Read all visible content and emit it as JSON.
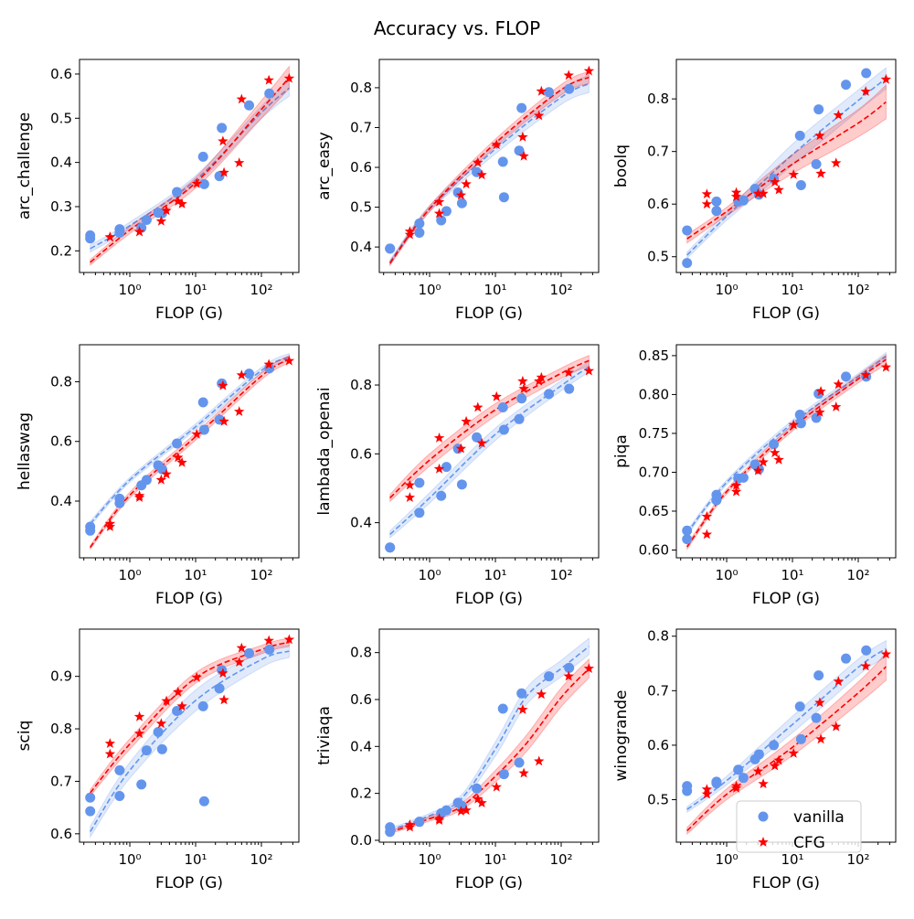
{
  "title": "Accuracy vs. FLOP",
  "legend": {
    "placement": "lower-right",
    "entries": [
      {
        "label": "vanilla",
        "color": "#6495ED",
        "marker": "circle"
      },
      {
        "label": "CFG",
        "color": "#FF0000",
        "marker": "star"
      }
    ]
  },
  "colors": {
    "vanilla": "#6495ED",
    "CFG": "#FF0000"
  },
  "shared": {
    "xlabel": "FLOP (G)",
    "xscale": "log",
    "xlim": [
      0.172,
      371
    ],
    "xticks": [
      1,
      10,
      100
    ],
    "xtick_labels": [
      "10⁰",
      "10¹",
      "10²"
    ],
    "vanilla_x": [
      0.25,
      0.25,
      0.7,
      0.7,
      1.5,
      1.8,
      2.7,
      3.1,
      5.2,
      13,
      13.5,
      23,
      25,
      65,
      132
    ],
    "cfg_x": [
      0.5,
      0.5,
      1.4,
      1.4,
      3,
      3.6,
      5.4,
      6.2,
      10.4,
      26,
      27,
      46,
      50,
      130,
      264
    ]
  },
  "chart_data": [
    {
      "type": "scatter",
      "ylabel": "arc_challenge",
      "ylim": [
        0.151,
        0.633
      ],
      "yticks": [
        0.2,
        0.3,
        0.4,
        0.5,
        0.6
      ],
      "ytick_labels": [
        "0.2",
        "0.3",
        "0.4",
        "0.5",
        "0.6"
      ],
      "series": [
        {
          "name": "vanilla",
          "y": [
            0.235,
            0.228,
            0.249,
            0.241,
            0.252,
            0.27,
            0.286,
            0.285,
            0.333,
            0.413,
            0.351,
            0.369,
            0.478,
            0.529,
            0.556
          ],
          "fit": {
            "x": [
              0.25,
              1,
              10,
              100,
              264
            ],
            "y": [
              0.205,
              0.257,
              0.36,
              0.513,
              0.568
            ],
            "band": [
              0.008,
              0.008,
              0.01,
              0.014,
              0.018
            ]
          }
        },
        {
          "name": "CFG",
          "y": [
            0.231,
            0.231,
            0.243,
            0.243,
            0.267,
            0.291,
            0.312,
            0.306,
            0.352,
            0.448,
            0.377,
            0.399,
            0.543,
            0.586,
            0.59
          ],
          "fit": {
            "x": [
              0.25,
              1,
              10,
              100,
              264
            ],
            "y": [
              0.174,
              0.247,
              0.354,
              0.52,
              0.592
            ],
            "band": [
              0.006,
              0.008,
              0.012,
              0.02,
              0.025
            ]
          }
        }
      ]
    },
    {
      "type": "scatter",
      "ylabel": "arc_easy",
      "ylim": [
        0.336,
        0.871
      ],
      "yticks": [
        0.4,
        0.5,
        0.6,
        0.7,
        0.8
      ],
      "ytick_labels": [
        "0.4",
        "0.5",
        "0.6",
        "0.7",
        "0.8"
      ],
      "series": [
        {
          "name": "vanilla",
          "y": [
            0.396,
            0.396,
            0.459,
            0.436,
            0.467,
            0.49,
            0.537,
            0.51,
            0.588,
            0.614,
            0.525,
            0.642,
            0.749,
            0.789,
            0.797
          ],
          "fit": {
            "x": [
              0.25,
              1,
              10,
              100,
              264
            ],
            "y": [
              0.362,
              0.496,
              0.646,
              0.776,
              0.81
            ],
            "band": [
              0.006,
              0.008,
              0.012,
              0.018,
              0.022
            ]
          }
        },
        {
          "name": "CFG",
          "y": [
            0.439,
            0.431,
            0.513,
            0.484,
            0.53,
            0.558,
            0.612,
            0.581,
            0.657,
            0.676,
            0.628,
            0.73,
            0.791,
            0.831,
            0.842
          ],
          "fit": {
            "x": [
              0.25,
              1,
              10,
              100,
              264
            ],
            "y": [
              0.359,
              0.496,
              0.661,
              0.795,
              0.826
            ],
            "band": [
              0.005,
              0.007,
              0.01,
              0.013,
              0.015
            ]
          }
        }
      ]
    },
    {
      "type": "scatter",
      "ylabel": "boolq",
      "ylim": [
        0.47,
        0.875
      ],
      "yticks": [
        0.5,
        0.6,
        0.7,
        0.8
      ],
      "ytick_labels": [
        "0.5",
        "0.6",
        "0.7",
        "0.8"
      ],
      "series": [
        {
          "name": "vanilla",
          "y": [
            0.55,
            0.488,
            0.605,
            0.587,
            0.605,
            0.607,
            0.629,
            0.618,
            0.648,
            0.73,
            0.636,
            0.676,
            0.78,
            0.827,
            0.849
          ],
          "fit": {
            "x": [
              0.25,
              1,
              10,
              100,
              264
            ],
            "y": [
              0.503,
              0.577,
              0.694,
              0.797,
              0.839
            ],
            "band": [
              0.006,
              0.008,
              0.02,
              0.02,
              0.02
            ]
          }
        },
        {
          "name": "CFG",
          "y": [
            0.619,
            0.6,
            0.622,
            0.614,
            0.62,
            0.62,
            0.642,
            0.627,
            0.656,
            0.73,
            0.658,
            0.678,
            0.769,
            0.814,
            0.837
          ],
          "fit": {
            "x": [
              0.25,
              1,
              10,
              100,
              264
            ],
            "y": [
              0.534,
              0.586,
              0.676,
              0.754,
              0.794
            ],
            "band": [
              0.008,
              0.008,
              0.018,
              0.026,
              0.032
            ]
          }
        }
      ]
    },
    {
      "type": "scatter",
      "ylabel": "hellaswag",
      "ylim": [
        0.21,
        0.924
      ],
      "yticks": [
        0.4,
        0.6,
        0.8
      ],
      "ytick_labels": [
        "0.4",
        "0.6",
        "0.8"
      ],
      "series": [
        {
          "name": "vanilla",
          "y": [
            0.314,
            0.301,
            0.408,
            0.393,
            0.453,
            0.471,
            0.52,
            0.507,
            0.593,
            0.731,
            0.639,
            0.673,
            0.794,
            0.827,
            0.845
          ],
          "fit": {
            "x": [
              0.25,
              1,
              10,
              100,
              264
            ],
            "y": [
              0.324,
              0.471,
              0.649,
              0.838,
              0.883
            ],
            "band": [
              0.008,
              0.008,
              0.01,
              0.01,
              0.012
            ]
          }
        },
        {
          "name": "CFG",
          "y": [
            0.324,
            0.314,
            0.418,
            0.412,
            0.471,
            0.49,
            0.546,
            0.529,
            0.624,
            0.787,
            0.667,
            0.7,
            0.822,
            0.858,
            0.87
          ],
          "fit": {
            "x": [
              0.25,
              1,
              10,
              100,
              264
            ],
            "y": [
              0.245,
              0.42,
              0.616,
              0.819,
              0.876
            ],
            "band": [
              0.006,
              0.01,
              0.012,
              0.012,
              0.012
            ]
          }
        }
      ]
    },
    {
      "type": "scatter",
      "ylabel": "lambada_openai",
      "ylim": [
        0.298,
        0.917
      ],
      "yticks": [
        0.4,
        0.6,
        0.8
      ],
      "ytick_labels": [
        "0.4",
        "0.6",
        "0.8"
      ],
      "series": [
        {
          "name": "vanilla",
          "y": [
            0.328,
            0.328,
            0.516,
            0.429,
            0.478,
            0.562,
            0.615,
            0.511,
            0.648,
            0.735,
            0.67,
            0.701,
            0.761,
            0.774,
            0.789
          ],
          "fit": {
            "x": [
              0.25,
              1,
              10,
              100,
              264
            ],
            "y": [
              0.366,
              0.472,
              0.657,
              0.798,
              0.853
            ],
            "band": [
              0.01,
              0.015,
              0.018,
              0.015,
              0.015
            ]
          }
        },
        {
          "name": "CFG",
          "y": [
            0.509,
            0.473,
            0.646,
            0.556,
            0.615,
            0.694,
            0.735,
            0.631,
            0.766,
            0.811,
            0.789,
            0.811,
            0.822,
            0.836,
            0.841
          ],
          "fit": {
            "x": [
              0.25,
              1,
              10,
              100,
              264
            ],
            "y": [
              0.472,
              0.582,
              0.728,
              0.834,
              0.871
            ],
            "band": [
              0.01,
              0.018,
              0.018,
              0.015,
              0.015
            ]
          }
        }
      ]
    },
    {
      "type": "scatter",
      "ylabel": "piqa",
      "ylim": [
        0.59,
        0.864
      ],
      "yticks": [
        0.6,
        0.65,
        0.7,
        0.75,
        0.8,
        0.85
      ],
      "ytick_labels": [
        "0.60",
        "0.65",
        "0.70",
        "0.75",
        "0.80",
        "0.85"
      ],
      "series": [
        {
          "name": "vanilla",
          "y": [
            0.625,
            0.614,
            0.671,
            0.664,
            0.692,
            0.693,
            0.71,
            0.704,
            0.736,
            0.774,
            0.763,
            0.77,
            0.801,
            0.823,
            0.823
          ],
          "fit": {
            "x": [
              0.25,
              1,
              10,
              100,
              264
            ],
            "y": [
              0.622,
              0.687,
              0.763,
              0.823,
              0.849
            ],
            "band": [
              0.003,
              0.003,
              0.004,
              0.004,
              0.005
            ]
          }
        },
        {
          "name": "CFG",
          "y": [
            0.643,
            0.62,
            0.683,
            0.675,
            0.702,
            0.713,
            0.725,
            0.716,
            0.761,
            0.777,
            0.804,
            0.784,
            0.813,
            0.825,
            0.835
          ],
          "fit": {
            "x": [
              0.25,
              1,
              10,
              100,
              264
            ],
            "y": [
              0.604,
              0.675,
              0.757,
              0.82,
              0.845
            ],
            "band": [
              0.003,
              0.003,
              0.004,
              0.005,
              0.006
            ]
          }
        }
      ]
    },
    {
      "type": "scatter",
      "ylabel": "sciq",
      "ylim": [
        0.584,
        0.99
      ],
      "yticks": [
        0.6,
        0.7,
        0.8,
        0.9
      ],
      "ytick_labels": [
        "0.6",
        "0.7",
        "0.8",
        "0.9"
      ],
      "series": [
        {
          "name": "vanilla",
          "y": [
            0.669,
            0.643,
            0.721,
            0.672,
            0.694,
            0.759,
            0.794,
            0.761,
            0.834,
            0.843,
            0.662,
            0.877,
            0.912,
            0.944,
            0.951
          ],
          "fit": {
            "x": [
              0.25,
              1,
              10,
              100,
              264
            ],
            "y": [
              0.604,
              0.721,
              0.854,
              0.932,
              0.948
            ],
            "band": [
              0.01,
              0.015,
              0.02,
              0.015,
              0.012
            ]
          }
        },
        {
          "name": "CFG",
          "y": [
            0.772,
            0.752,
            0.823,
            0.791,
            0.81,
            0.853,
            0.87,
            0.843,
            0.898,
            0.906,
            0.855,
            0.927,
            0.954,
            0.968,
            0.97
          ],
          "fit": {
            "x": [
              0.25,
              1,
              10,
              100,
              264
            ],
            "y": [
              0.678,
              0.771,
              0.897,
              0.951,
              0.965
            ],
            "band": [
              0.006,
              0.01,
              0.01,
              0.008,
              0.008
            ]
          }
        }
      ]
    },
    {
      "type": "scatter",
      "ylabel": "triviaqa",
      "ylim": [
        -0.008,
        0.9
      ],
      "yticks": [
        0.0,
        0.2,
        0.4,
        0.6,
        0.8
      ],
      "ytick_labels": [
        "0.0",
        "0.2",
        "0.4",
        "0.6",
        "0.8"
      ],
      "series": [
        {
          "name": "vanilla",
          "y": [
            0.056,
            0.036,
            0.079,
            0.079,
            0.115,
            0.128,
            0.16,
            0.147,
            0.221,
            0.561,
            0.282,
            0.331,
            0.626,
            0.699,
            0.735
          ],
          "fit": {
            "x": [
              0.25,
              1,
              3,
              10,
              30,
              100,
              264
            ],
            "y": [
              0.043,
              0.105,
              0.176,
              0.389,
              0.615,
              0.732,
              0.826
            ],
            "band": [
              0.008,
              0.01,
              0.015,
              0.03,
              0.035,
              0.035,
              0.035
            ]
          }
        },
        {
          "name": "CFG",
          "y": [
            0.066,
            0.056,
            0.092,
            0.085,
            0.124,
            0.128,
            0.176,
            0.159,
            0.227,
            0.557,
            0.286,
            0.337,
            0.622,
            0.699,
            0.732
          ],
          "fit": {
            "x": [
              0.25,
              1,
              3,
              10,
              30,
              100,
              264
            ],
            "y": [
              0.034,
              0.092,
              0.143,
              0.273,
              0.415,
              0.609,
              0.732
            ],
            "band": [
              0.006,
              0.01,
              0.015,
              0.025,
              0.035,
              0.04,
              0.04
            ]
          }
        }
      ]
    },
    {
      "type": "scatter",
      "ylabel": "winogrande",
      "ylim": [
        0.422,
        0.813
      ],
      "yticks": [
        0.5,
        0.6,
        0.7,
        0.8
      ],
      "ytick_labels": [
        "0.5",
        "0.6",
        "0.7",
        "0.8"
      ],
      "series": [
        {
          "name": "vanilla",
          "y": [
            0.525,
            0.516,
            0.533,
            0.53,
            0.555,
            0.54,
            0.574,
            0.583,
            0.6,
            0.671,
            0.611,
            0.65,
            0.728,
            0.759,
            0.774
          ],
          "fit": {
            "x": [
              0.25,
              1,
              10,
              100,
              264
            ],
            "y": [
              0.482,
              0.535,
              0.638,
              0.743,
              0.777
            ],
            "band": [
              0.005,
              0.008,
              0.015,
              0.015,
              0.015
            ]
          }
        },
        {
          "name": "CFG",
          "y": [
            0.519,
            0.51,
            0.525,
            0.521,
            0.552,
            0.529,
            0.562,
            0.572,
            0.585,
            0.678,
            0.611,
            0.634,
            0.717,
            0.745,
            0.767
          ],
          "fit": {
            "x": [
              0.25,
              1,
              10,
              100,
              264
            ],
            "y": [
              0.443,
              0.51,
              0.596,
              0.696,
              0.744
            ],
            "band": [
              0.006,
              0.01,
              0.015,
              0.02,
              0.025
            ]
          }
        }
      ]
    }
  ]
}
